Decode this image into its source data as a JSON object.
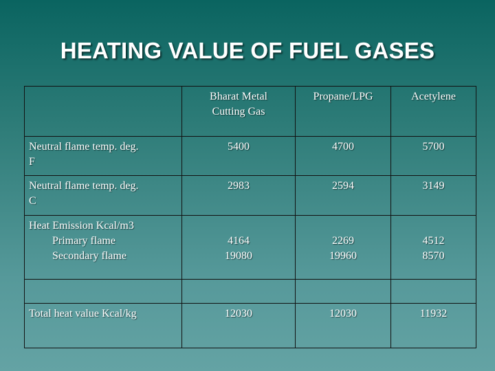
{
  "title": "HEATING VALUE OF FUEL GASES",
  "columns": [
    "",
    "Bharat Metal Cutting Gas",
    "Propane/LPG",
    "Acetylene"
  ],
  "header_lines": {
    "bharat_line1": "Bharat Metal",
    "bharat_line2": "Cutting Gas"
  },
  "rows": [
    {
      "label": "Neutral flame temp. deg. F",
      "label_line1": "Neutral  flame  temp.  deg.",
      "label_line2": "F",
      "values": [
        "5400",
        "4700",
        "5700"
      ]
    },
    {
      "label": "Neutral flame temp. deg. C",
      "label_line1": "Neutral  flame  temp.  deg.",
      "label_line2": "C",
      "values": [
        "2983",
        "2594",
        "3149"
      ]
    },
    {
      "label": "Heat Emission Kcal/m3",
      "sublabels": [
        "Primary flame",
        "Secondary flame"
      ],
      "primary": [
        "4164",
        "2269",
        "4512"
      ],
      "secondary": [
        "19080",
        "19960",
        "8570"
      ]
    },
    {
      "label": "",
      "values": [
        "",
        "",
        ""
      ]
    },
    {
      "label": "Total heat value Kcal/kg",
      "values": [
        "12030",
        "12030",
        "11932"
      ]
    }
  ]
}
